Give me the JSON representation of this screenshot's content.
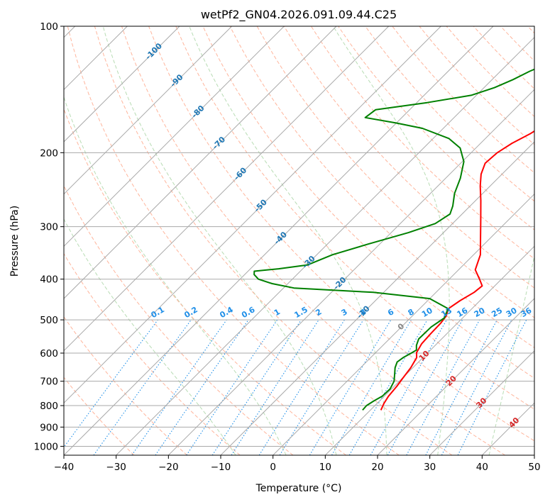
{
  "chart_data": {
    "type": "line",
    "diagram": "skew-T log-P",
    "title": "wetPf2_GN04.2026.091.09.44.C25",
    "xlabel": "Temperature (°C)",
    "ylabel": "Pressure (hPa)",
    "xlim": [
      -40,
      50
    ],
    "ylim": [
      1050,
      100
    ],
    "xticks": [
      -40,
      -30,
      -20,
      -10,
      0,
      10,
      20,
      30,
      40,
      50
    ],
    "yticks": [
      100,
      200,
      300,
      400,
      500,
      600,
      700,
      800,
      900,
      1000
    ],
    "grid": true,
    "series": [
      {
        "name": "temperature",
        "color": "#ff0000",
        "points": [
          {
            "p": 820,
            "t": 12.0
          },
          {
            "p": 790,
            "t": 11.3
          },
          {
            "p": 760,
            "t": 10.8
          },
          {
            "p": 720,
            "t": 10.5
          },
          {
            "p": 690,
            "t": 10.1
          },
          {
            "p": 650,
            "t": 9.6
          },
          {
            "p": 615,
            "t": 8.8
          },
          {
            "p": 598,
            "t": 7.8
          },
          {
            "p": 570,
            "t": 7.1
          },
          {
            "p": 540,
            "t": 6.9
          },
          {
            "p": 510,
            "t": 6.8
          },
          {
            "p": 490,
            "t": 6.5
          },
          {
            "p": 470,
            "t": 5.5
          },
          {
            "p": 450,
            "t": 6.2
          },
          {
            "p": 430,
            "t": 7.3
          },
          {
            "p": 415,
            "t": 7.6
          },
          {
            "p": 400,
            "t": 5.8
          },
          {
            "p": 380,
            "t": 3.2
          },
          {
            "p": 350,
            "t": 1.3
          },
          {
            "p": 320,
            "t": -1.8
          },
          {
            "p": 290,
            "t": -5.2
          },
          {
            "p": 260,
            "t": -9.0
          },
          {
            "p": 240,
            "t": -11.9
          },
          {
            "p": 225,
            "t": -14.0
          },
          {
            "p": 212,
            "t": -15.3
          },
          {
            "p": 200,
            "t": -15.0
          },
          {
            "p": 190,
            "t": -14.0
          },
          {
            "p": 180,
            "t": -12.3
          },
          {
            "p": 170,
            "t": -11.1
          },
          {
            "p": 160,
            "t": -11.0
          },
          {
            "p": 150,
            "t": -12.4
          },
          {
            "p": 140,
            "t": -14.3
          },
          {
            "p": 130,
            "t": -16.8
          },
          {
            "p": 120,
            "t": -20.3
          },
          {
            "p": 115,
            "t": -23.5
          },
          {
            "p": 108,
            "t": -26.6
          },
          {
            "p": 100,
            "t": -30.0
          }
        ]
      },
      {
        "name": "dewpoint",
        "color": "#008000",
        "points": [
          {
            "p": 820,
            "t": 8.5
          },
          {
            "p": 800,
            "t": 8.4
          },
          {
            "p": 780,
            "t": 8.9
          },
          {
            "p": 760,
            "t": 9.6
          },
          {
            "p": 730,
            "t": 9.7
          },
          {
            "p": 700,
            "t": 9.0
          },
          {
            "p": 670,
            "t": 7.6
          },
          {
            "p": 650,
            "t": 6.6
          },
          {
            "p": 630,
            "t": 5.9
          },
          {
            "p": 615,
            "t": 6.2
          },
          {
            "p": 600,
            "t": 6.9
          },
          {
            "p": 590,
            "t": 7.3
          },
          {
            "p": 575,
            "t": 6.4
          },
          {
            "p": 555,
            "t": 5.6
          },
          {
            "p": 520,
            "t": 5.7
          },
          {
            "p": 495,
            "t": 6.5
          },
          {
            "p": 470,
            "t": 5.4
          },
          {
            "p": 445,
            "t": 0.0
          },
          {
            "p": 430,
            "t": -12.0
          },
          {
            "p": 420,
            "t": -28.0
          },
          {
            "p": 410,
            "t": -33.0
          },
          {
            "p": 400,
            "t": -36.5
          },
          {
            "p": 390,
            "t": -38.2
          },
          {
            "p": 383,
            "t": -38.8
          },
          {
            "p": 378,
            "t": -34.6
          },
          {
            "p": 370,
            "t": -29.8
          },
          {
            "p": 350,
            "t": -27.0
          },
          {
            "p": 330,
            "t": -22.2
          },
          {
            "p": 310,
            "t": -16.7
          },
          {
            "p": 295,
            "t": -13.3
          },
          {
            "p": 280,
            "t": -12.3
          },
          {
            "p": 268,
            "t": -13.3
          },
          {
            "p": 250,
            "t": -15.4
          },
          {
            "p": 230,
            "t": -17.2
          },
          {
            "p": 210,
            "t": -19.7
          },
          {
            "p": 195,
            "t": -23.0
          },
          {
            "p": 185,
            "t": -27.0
          },
          {
            "p": 175,
            "t": -34.0
          },
          {
            "p": 170,
            "t": -40.0
          },
          {
            "p": 165,
            "t": -47.0
          },
          {
            "p": 158,
            "t": -46.5
          },
          {
            "p": 152,
            "t": -38.0
          },
          {
            "p": 146,
            "t": -31.0
          },
          {
            "p": 140,
            "t": -28.0
          },
          {
            "p": 134,
            "t": -26.0
          },
          {
            "p": 128,
            "t": -24.4
          },
          {
            "p": 122,
            "t": -22.2
          },
          {
            "p": 116,
            "t": -20.2
          },
          {
            "p": 110,
            "t": -19.1
          },
          {
            "p": 104,
            "t": -19.0
          },
          {
            "p": 100,
            "t": -19.6
          }
        ]
      }
    ],
    "isotherms": {
      "color": "#aaaaaa",
      "start": -120,
      "end": 50,
      "step": 10
    },
    "dry_adiabats": {
      "color": "#ffb59c",
      "theta_c": [
        -30,
        -20,
        -10,
        0,
        10,
        20,
        30,
        40,
        50,
        60,
        70,
        80,
        90,
        100,
        110,
        120,
        130,
        140,
        150,
        160,
        170,
        180,
        190,
        200,
        210,
        220,
        230
      ]
    },
    "moist_adiabats": {
      "color": "#b8dcb4",
      "theta_w_c": [
        -10,
        0,
        10,
        20,
        30,
        40
      ]
    },
    "mixing_ratio_lines": {
      "color": "#1f8fe8",
      "label_pressure": 500,
      "values": [
        0.1,
        0.2,
        0.4,
        0.6,
        1,
        1.5,
        2,
        3,
        4,
        6,
        8,
        10,
        13,
        16,
        20,
        25,
        30,
        36
      ],
      "labels": [
        "0.1",
        "0.2",
        "0.4",
        "0.6",
        "1",
        "1.5",
        "2",
        "3",
        "4",
        "6",
        "8",
        "10",
        "13",
        "16",
        "20",
        "25",
        "30",
        "36"
      ]
    },
    "isotherm_labels": {
      "color": "#1f77b4",
      "points": [
        {
          "label": "-100",
          "t": -100,
          "p": 115
        },
        {
          "label": "-90",
          "t": -90,
          "p": 135
        },
        {
          "label": "-80",
          "t": -80,
          "p": 160
        },
        {
          "label": "-70",
          "t": -70,
          "p": 190
        },
        {
          "label": "-60",
          "t": -60,
          "p": 225
        },
        {
          "label": "-50",
          "t": -50,
          "p": 268
        },
        {
          "label": "-40",
          "t": -40,
          "p": 320
        },
        {
          "label": "-30",
          "t": -30,
          "p": 365
        },
        {
          "label": "-20",
          "t": -20,
          "p": 410
        },
        {
          "label": "-10",
          "t": -10,
          "p": 480
        }
      ]
    },
    "wet_bulb_labels": {
      "color": "#d62728",
      "points": [
        {
          "label": "0",
          "t": 0,
          "p": 520,
          "color": "#888888"
        },
        {
          "label": "10",
          "t": 10,
          "p": 610
        },
        {
          "label": "20",
          "t": 20,
          "p": 700
        },
        {
          "label": "30",
          "t": 30,
          "p": 790
        },
        {
          "label": "40",
          "t": 40,
          "p": 880
        }
      ]
    }
  }
}
